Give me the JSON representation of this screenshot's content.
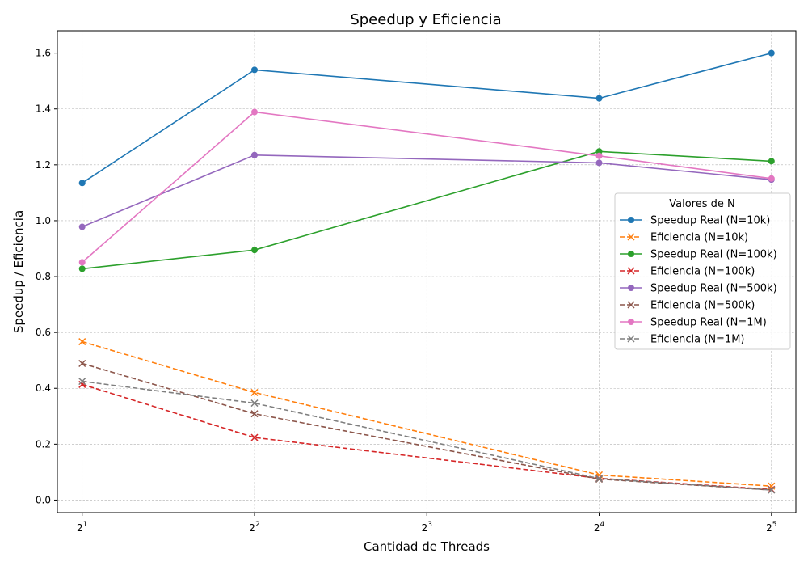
{
  "chart_data": {
    "type": "line",
    "title": "Speedup y Eficiencia",
    "xlabel": "Cantidad de Threads",
    "ylabel": "Speedup / Eficiencia",
    "x_scale": "log2",
    "x": [
      2,
      4,
      16,
      32
    ],
    "x_ticks": [
      {
        "base": "2",
        "exp": "1",
        "value": 2
      },
      {
        "base": "2",
        "exp": "2",
        "value": 4
      },
      {
        "base": "2",
        "exp": "3",
        "value": 8
      },
      {
        "base": "2",
        "exp": "4",
        "value": 16
      },
      {
        "base": "2",
        "exp": "5",
        "value": 32
      }
    ],
    "xlim": [
      1.81,
      35.3
    ],
    "ylim": [
      -0.045,
      1.68
    ],
    "y_ticks": [
      "0.0",
      "0.2",
      "0.4",
      "0.6",
      "0.8",
      "1.0",
      "1.2",
      "1.4",
      "1.6"
    ],
    "grid": true,
    "legend": {
      "title": "Valores de N",
      "position": "center-right"
    },
    "series": [
      {
        "name": "Speedup Real (N=10k)",
        "color": "#1f77b4",
        "style": "solid",
        "marker": "circle",
        "values": [
          1.135,
          1.54,
          1.438,
          1.6
        ]
      },
      {
        "name": "Eficiencia (N=10k)",
        "color": "#ff7f0e",
        "style": "dashed",
        "marker": "x",
        "values": [
          0.567,
          0.385,
          0.09,
          0.05
        ]
      },
      {
        "name": "Speedup Real (N=100k)",
        "color": "#2ca02c",
        "style": "solid",
        "marker": "circle",
        "values": [
          0.828,
          0.895,
          1.248,
          1.213
        ]
      },
      {
        "name": "Eficiencia (N=100k)",
        "color": "#d62728",
        "style": "dashed",
        "marker": "x",
        "values": [
          0.414,
          0.224,
          0.078,
          0.038
        ]
      },
      {
        "name": "Speedup Real (N=500k)",
        "color": "#9467bd",
        "style": "solid",
        "marker": "circle",
        "values": [
          0.978,
          1.235,
          1.207,
          1.147
        ]
      },
      {
        "name": "Eficiencia (N=500k)",
        "color": "#8c564b",
        "style": "dashed",
        "marker": "x",
        "values": [
          0.489,
          0.309,
          0.075,
          0.036
        ]
      },
      {
        "name": "Speedup Real (N=1M)",
        "color": "#e377c2",
        "style": "solid",
        "marker": "circle",
        "values": [
          0.851,
          1.389,
          1.232,
          1.151
        ]
      },
      {
        "name": "Eficiencia (N=1M)",
        "color": "#7f7f7f",
        "style": "dashed",
        "marker": "x",
        "values": [
          0.425,
          0.347,
          0.077,
          0.036
        ]
      }
    ]
  }
}
